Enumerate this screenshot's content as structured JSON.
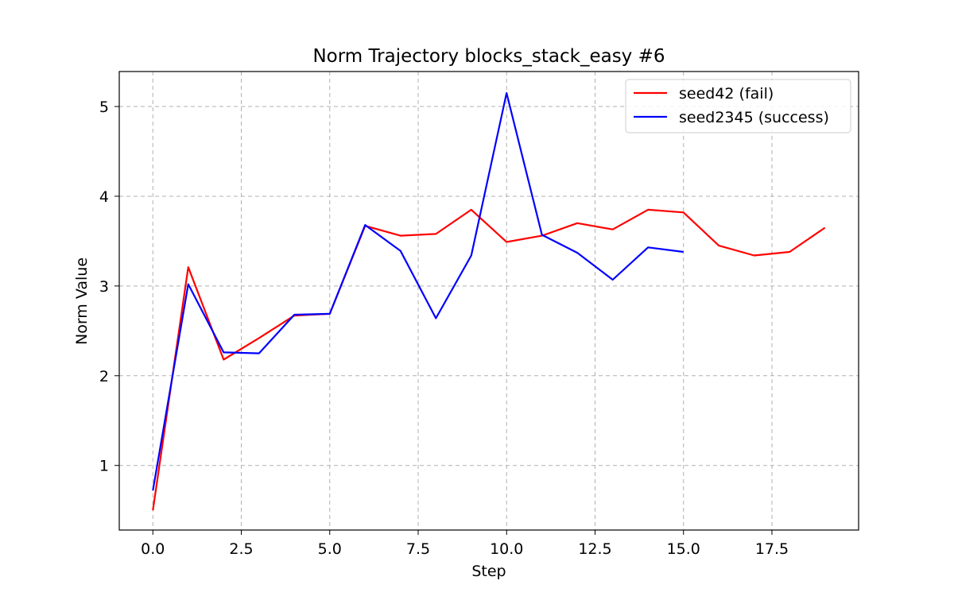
{
  "chart_data": {
    "type": "line",
    "title": "Norm Trajectory blocks_stack_easy #6",
    "xlabel": "Step",
    "ylabel": "Norm Value",
    "xlim": [
      -0.95,
      19.95
    ],
    "ylim": [
      0.28,
      5.39
    ],
    "xticks": [
      0.0,
      2.5,
      5.0,
      7.5,
      10.0,
      12.5,
      15.0,
      17.5
    ],
    "xtick_labels": [
      "0.0",
      "2.5",
      "5.0",
      "7.5",
      "10.0",
      "12.5",
      "15.0",
      "17.5"
    ],
    "yticks": [
      1,
      2,
      3,
      4,
      5
    ],
    "ytick_labels": [
      "1",
      "2",
      "3",
      "4",
      "5"
    ],
    "grid": true,
    "legend_position": "top-right",
    "series": [
      {
        "name": "seed42 (fail)",
        "color": "#ff0000",
        "x": [
          0,
          1,
          2,
          3,
          4,
          5,
          6,
          7,
          8,
          9,
          10,
          11,
          12,
          13,
          14,
          15,
          16,
          17,
          18,
          19
        ],
        "y": [
          0.5,
          3.21,
          2.18,
          2.42,
          2.67,
          2.69,
          3.67,
          3.56,
          3.58,
          3.85,
          3.49,
          3.56,
          3.7,
          3.63,
          3.85,
          3.82,
          3.45,
          3.34,
          3.38,
          3.65
        ]
      },
      {
        "name": "seed2345 (success)",
        "color": "#0000ff",
        "x": [
          0,
          1,
          2,
          3,
          4,
          5,
          6,
          7,
          8,
          9,
          10,
          11,
          12,
          13,
          14,
          15
        ],
        "y": [
          0.72,
          3.02,
          2.26,
          2.25,
          2.68,
          2.69,
          3.68,
          3.39,
          2.64,
          3.34,
          5.15,
          3.57,
          3.37,
          3.07,
          3.43,
          3.38
        ]
      }
    ]
  }
}
